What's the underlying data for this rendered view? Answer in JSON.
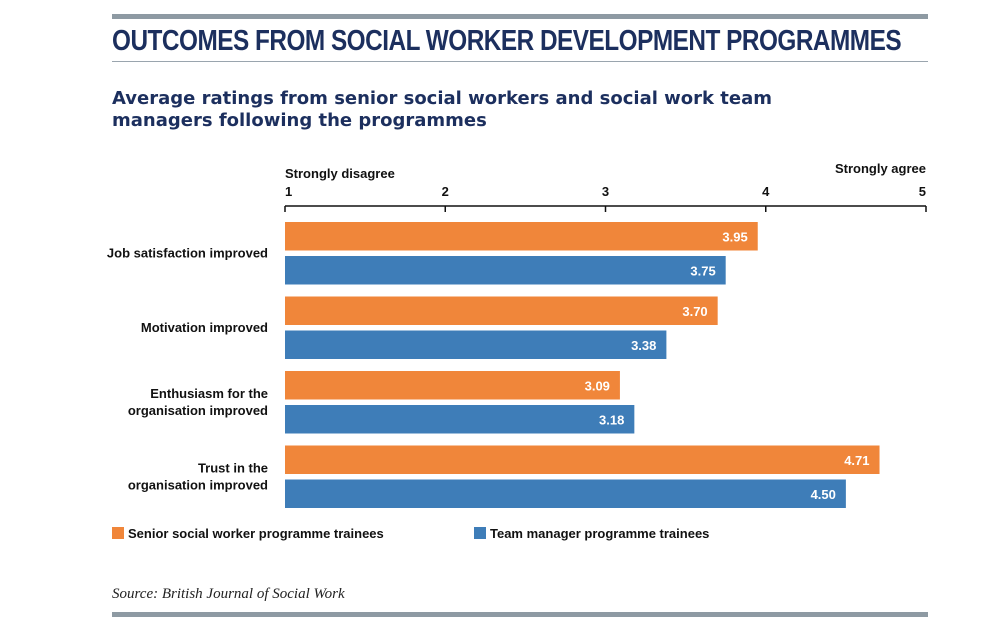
{
  "header": {
    "title": "OUTCOMES FROM SOCIAL WORKER DEVELOPMENT PROGRAMMES",
    "subtitle": "Average ratings from senior social workers and social work team managers following the programmes"
  },
  "footer": {
    "source": "Source: British Journal of Social Work"
  },
  "colors": {
    "senior": "#f0863a",
    "manager": "#3e7db8",
    "heading": "#1c2f5e",
    "rule": "#8e9aa3"
  },
  "chart_data": {
    "type": "bar",
    "orientation": "horizontal",
    "title": "",
    "xlabel": "",
    "ylabel": "",
    "xlim": [
      1,
      5
    ],
    "ticks": [
      "1",
      "2",
      "3",
      "4",
      "5"
    ],
    "scale_labels": {
      "min": "Strongly disagree",
      "max": "Strongly agree"
    },
    "categories": [
      [
        "Job satisfaction improved"
      ],
      [
        "Motivation improved"
      ],
      [
        "Enthusiasm for the",
        "organisation improved"
      ],
      [
        "Trust in the",
        "organisation improved"
      ]
    ],
    "series": [
      {
        "name": "Senior social worker programme trainees",
        "values": [
          3.95,
          3.7,
          3.09,
          4.71
        ],
        "labels": [
          "3.95",
          "3.70",
          "3.09",
          "4.71"
        ]
      },
      {
        "name": "Team manager programme trainees",
        "values": [
          3.75,
          3.38,
          3.18,
          4.5
        ],
        "labels": [
          "3.75",
          "3.38",
          "3.18",
          "4.50"
        ]
      }
    ],
    "grid": false,
    "legend": "bottom-left"
  }
}
